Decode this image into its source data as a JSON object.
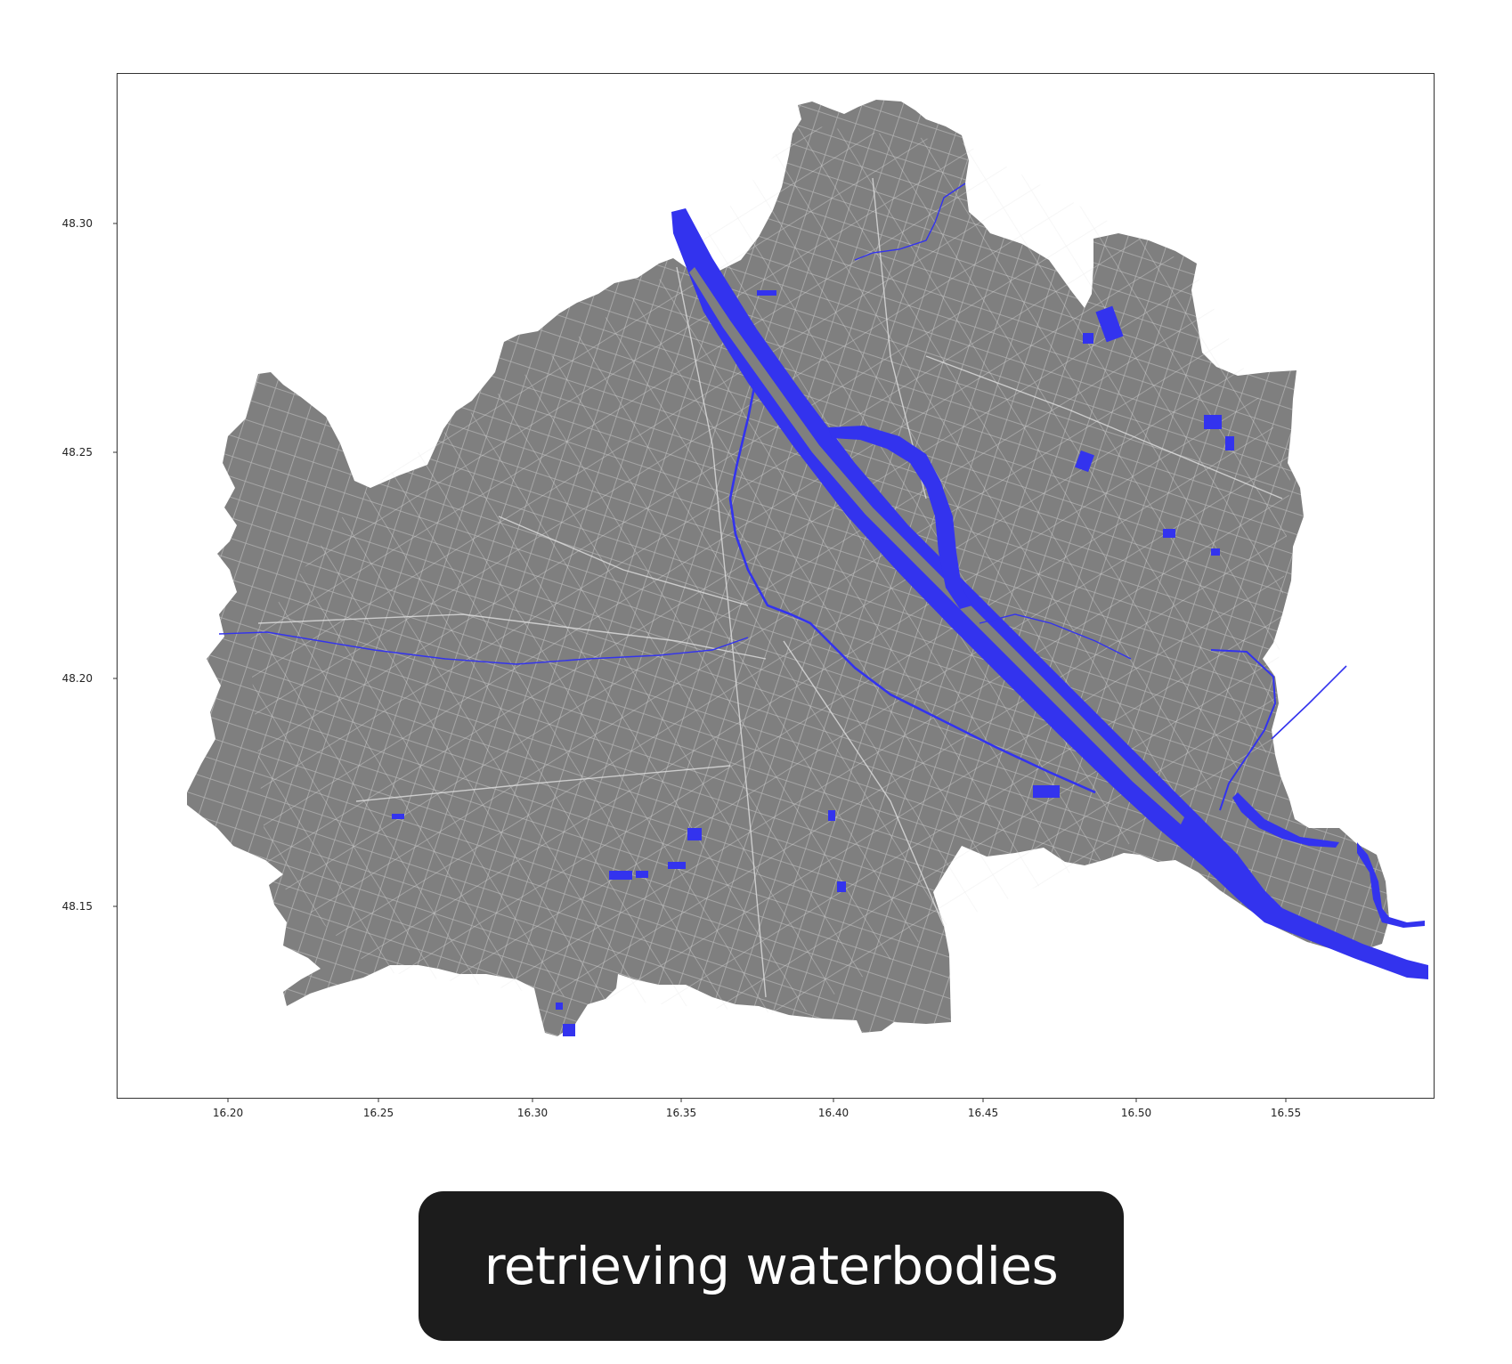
{
  "map": {
    "xticks": [
      "16.20",
      "16.25",
      "16.30",
      "16.35",
      "16.40",
      "16.45",
      "16.50",
      "16.55"
    ],
    "yticks": [
      "48.30",
      "48.25",
      "48.20",
      "48.15"
    ],
    "colors": {
      "land": "#7f7f7f",
      "streets": "#d9d9d9",
      "water": "#3333ee",
      "frame": "#333333"
    },
    "layers": [
      "city-area",
      "street-network",
      "waterbodies"
    ]
  },
  "caption": {
    "text": "retrieving waterbodies",
    "background": "#1c1c1c",
    "color": "#ffffff"
  }
}
